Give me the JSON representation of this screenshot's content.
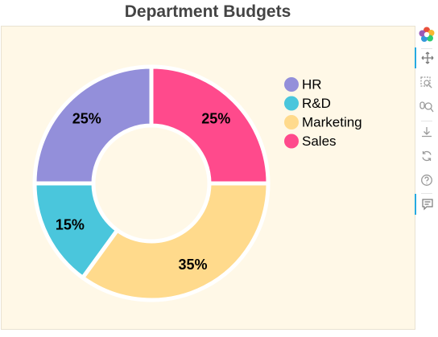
{
  "chart_data": {
    "type": "pie",
    "title": "Department Budgets",
    "categories": [
      "HR",
      "R&D",
      "Marketing",
      "Sales"
    ],
    "values": [
      25,
      15,
      35,
      25
    ],
    "labels": [
      "25%",
      "15%",
      "35%",
      "25%"
    ],
    "colors": [
      "#938fda",
      "#4ac6dc",
      "#ffda8c",
      "#ff4a8c"
    ],
    "donut": true,
    "legend_position": "top-right"
  },
  "toolbar": {
    "tools": [
      {
        "name": "bokeh-logo-icon",
        "active": false
      },
      {
        "name": "pan-icon",
        "active": true
      },
      {
        "name": "box-zoom-icon",
        "active": false
      },
      {
        "name": "wheel-zoom-icon",
        "active": false
      },
      {
        "name": "save-icon",
        "active": false
      },
      {
        "name": "reset-icon",
        "active": false
      },
      {
        "name": "help-icon",
        "active": false
      },
      {
        "name": "hover-icon",
        "active": true
      }
    ]
  },
  "colors": {
    "plot_background": "#fff8e7",
    "toolbar_accent": "#26aae1",
    "title": "#444444"
  }
}
